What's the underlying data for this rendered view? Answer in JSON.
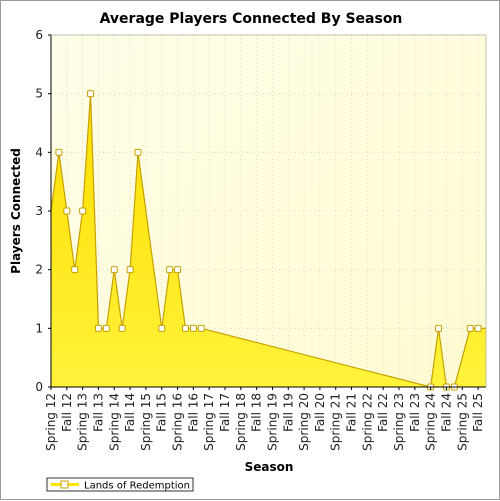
{
  "chart_data": {
    "type": "area",
    "title": "Average Players Connected By Season",
    "xlabel": "Season",
    "ylabel": "Players Connected",
    "ylim": [
      0,
      6
    ],
    "yticks": [
      0,
      1,
      2,
      3,
      4,
      5,
      6
    ],
    "grid": true,
    "legend_position": "bottom-left",
    "tick_labels": [
      "Spring 12",
      "Fall 12",
      "Spring 13",
      "Fall 13",
      "Spring 14",
      "Fall 14",
      "Spring 15",
      "Fall 15",
      "Spring 16",
      "Fall 16",
      "Spring 17",
      "Fall 17",
      "Spring 18",
      "Fall 18",
      "Spring 19",
      "Fall 19",
      "Spring 20",
      "Fall 20",
      "Spring 21",
      "Fall 21",
      "Spring 22",
      "Fall 22",
      "Spring 23",
      "Fall 23",
      "Spring 24",
      "Fall 24",
      "Spring 25",
      "Fall 25"
    ],
    "series": [
      {
        "name": "Lands of Redemption",
        "points": [
          {
            "x": 0.0,
            "y": 3
          },
          {
            "x": 0.5,
            "y": 4
          },
          {
            "x": 1.0,
            "y": 3
          },
          {
            "x": 1.5,
            "y": 2
          },
          {
            "x": 2.0,
            "y": 3
          },
          {
            "x": 2.5,
            "y": 5
          },
          {
            "x": 3.0,
            "y": 1
          },
          {
            "x": 3.5,
            "y": 1
          },
          {
            "x": 4.0,
            "y": 2
          },
          {
            "x": 4.5,
            "y": 1
          },
          {
            "x": 5.0,
            "y": 2
          },
          {
            "x": 5.5,
            "y": 4
          },
          {
            "x": 7.0,
            "y": 1
          },
          {
            "x": 7.5,
            "y": 2
          },
          {
            "x": 8.0,
            "y": 2
          },
          {
            "x": 8.5,
            "y": 1
          },
          {
            "x": 9.0,
            "y": 1
          },
          {
            "x": 9.5,
            "y": 1
          },
          {
            "x": 24.0,
            "y": 0
          },
          {
            "x": 24.5,
            "y": 1
          },
          {
            "x": 25.0,
            "y": 0
          },
          {
            "x": 25.5,
            "y": 0
          },
          {
            "x": 26.5,
            "y": 1
          },
          {
            "x": 27.0,
            "y": 1
          },
          {
            "x": 27.5,
            "y": 1
          }
        ],
        "marker_hidden_indices": [
          0,
          24
        ],
        "color_fill": "#ffe600",
        "color_line": "#c8a000",
        "marker_fill": "#ffffff"
      }
    ]
  },
  "colors": {
    "plot_background": "#fffde2",
    "grid": "#d4d4c4",
    "axis": "#000000"
  }
}
